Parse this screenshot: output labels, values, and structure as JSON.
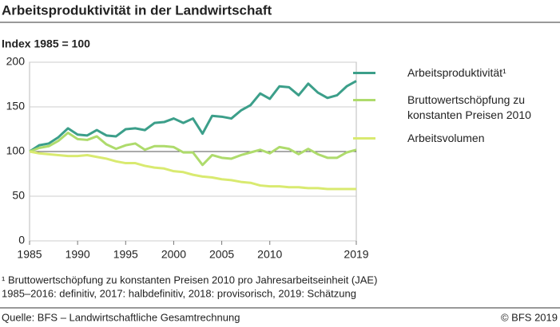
{
  "chart_data": {
    "type": "line",
    "title": "Arbeitsproduktivität in der Landwirtschaft",
    "y_label": "Index 1985 = 100",
    "x": [
      1985,
      1986,
      1987,
      1988,
      1989,
      1990,
      1991,
      1992,
      1993,
      1994,
      1995,
      1996,
      1997,
      1998,
      1999,
      2000,
      2001,
      2002,
      2003,
      2004,
      2005,
      2006,
      2007,
      2008,
      2009,
      2010,
      2011,
      2012,
      2013,
      2014,
      2015,
      2016,
      2017,
      2018,
      2019
    ],
    "series": [
      {
        "name": "Arbeitsproduktivität¹",
        "color": "#3c9f8a",
        "values": [
          100,
          107,
          109,
          116,
          126,
          119,
          118,
          124,
          118,
          117,
          125,
          126,
          124,
          132,
          133,
          137,
          132,
          137,
          120,
          140,
          139,
          137,
          146,
          152,
          165,
          159,
          173,
          172,
          163,
          176,
          166,
          160,
          163,
          173,
          179
        ]
      },
      {
        "name": "Bruttowertschöpfung zu konstanten Preisen 2010",
        "color": "#aedb6c",
        "values": [
          100,
          104,
          106,
          112,
          121,
          114,
          113,
          117,
          108,
          103,
          107,
          109,
          102,
          106,
          106,
          105,
          99,
          99,
          85,
          96,
          93,
          92,
          96,
          99,
          102,
          98,
          105,
          103,
          97,
          103,
          97,
          93,
          93,
          99,
          102
        ]
      },
      {
        "name": "Arbeitsvolumen",
        "color": "#d9ea70",
        "values": [
          100,
          98,
          97,
          96,
          95,
          95,
          96,
          94,
          92,
          89,
          87,
          87,
          84,
          82,
          81,
          78,
          77,
          74,
          72,
          71,
          69,
          68,
          66,
          65,
          62,
          61,
          61,
          60,
          60,
          59,
          59,
          58,
          58,
          58,
          58
        ]
      }
    ],
    "xlim": [
      1985,
      2019
    ],
    "xticks": [
      1985,
      1990,
      1995,
      2000,
      2005,
      2010,
      2019
    ],
    "ylim": [
      0,
      200
    ],
    "yticks": [
      0,
      50,
      100,
      150,
      200
    ],
    "baseline": 100,
    "grid": true,
    "notes": [
      "¹   Bruttowertschöpfung zu konstanten Preisen 2010 pro Jahresarbeitseinheit (JAE)",
      "1985–2016: definitiv, 2017: halbdefinitiv, 2018: provisorisch, 2019: Schätzung"
    ],
    "source": "Quelle: BFS – Landwirtschaftliche Gesamtrechnung",
    "copyright": "© BFS 2019"
  }
}
